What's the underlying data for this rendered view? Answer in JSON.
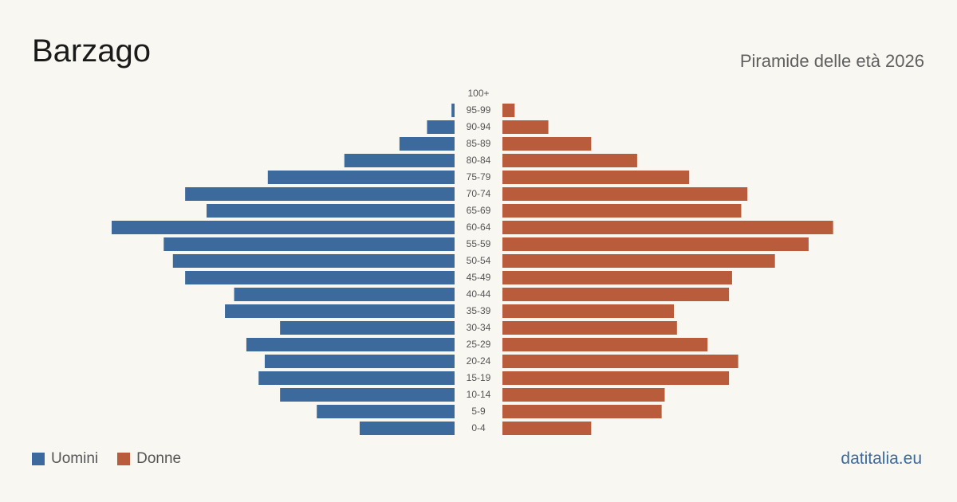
{
  "title": "Barzago",
  "subtitle": "Piramide delle età 2026",
  "site": "datitalia.eu",
  "colors": {
    "male": "#3d6a9c",
    "female": "#b85c3c"
  },
  "chart_data": {
    "type": "bar",
    "orientation": "horizontal-pyramid",
    "categories": [
      "100+",
      "95-99",
      "90-94",
      "85-89",
      "80-84",
      "75-79",
      "70-74",
      "65-69",
      "60-64",
      "55-59",
      "50-54",
      "45-49",
      "40-44",
      "35-39",
      "30-34",
      "25-29",
      "20-24",
      "15-19",
      "10-14",
      "5-9",
      "0-4"
    ],
    "series": [
      {
        "name": "Uomini",
        "values": [
          0,
          1,
          9,
          18,
          36,
          61,
          88,
          81,
          112,
          95,
          92,
          88,
          72,
          75,
          57,
          68,
          62,
          64,
          57,
          45,
          31
        ]
      },
      {
        "name": "Donne",
        "values": [
          0,
          4,
          15,
          29,
          44,
          61,
          80,
          78,
          108,
          100,
          89,
          75,
          74,
          56,
          57,
          67,
          77,
          74,
          53,
          52,
          29
        ]
      }
    ],
    "legend": [
      "Uomini",
      "Donne"
    ],
    "legend_position": "bottom-left",
    "grid": false
  }
}
